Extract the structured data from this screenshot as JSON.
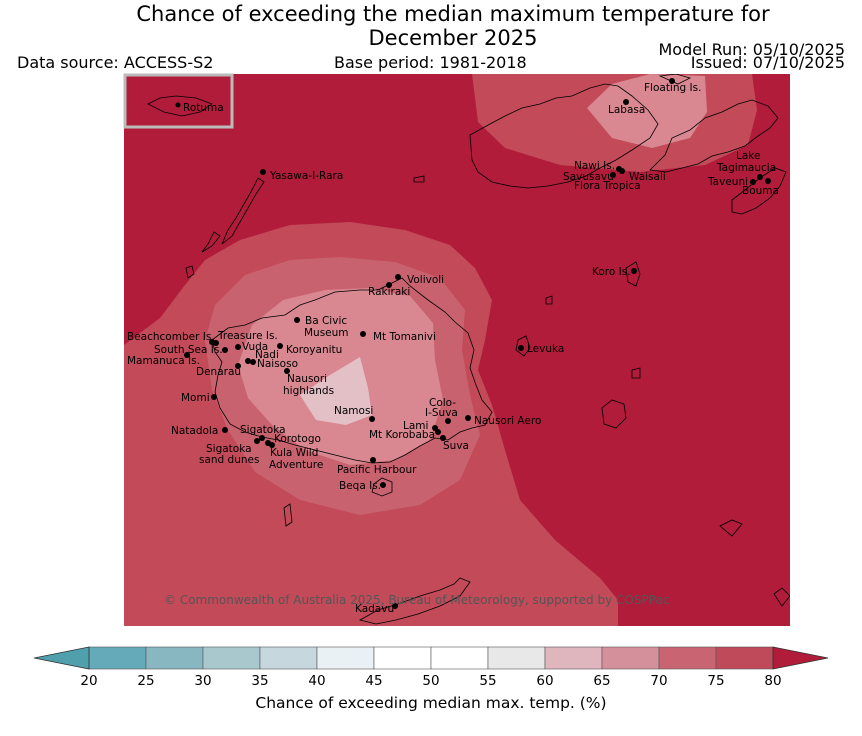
{
  "header": {
    "title_line1": "Chance of exceeding the median maximum temperature for",
    "title_line2": "December 2025",
    "data_source": "Data source: ACCESS-S2",
    "base_period": "Base period: 1981-2018",
    "model_run": "Model Run: 05/10/2025",
    "issued": "Issued: 07/10/2025"
  },
  "inset": {
    "label": "Rotuma"
  },
  "places": [
    "Floating Is.",
    "Labasa",
    "Yasawa-I-Rara",
    "Nawi Is.",
    "Savusavu",
    "Waisali",
    "Flora Tropica",
    "Lake",
    "Tagimaucia",
    "Taveuni",
    "Bouma",
    "Koro Is.",
    "Volivoli",
    "Rakiraki",
    "Ba Civic",
    "Museum",
    "Mt Tomanivi",
    "Beachcomber Is.",
    "Treasure Is.",
    "South Sea Is.",
    "Vuda",
    "Koroyanitu",
    "Nadi",
    "Mamanuca Is.",
    "Naisoso",
    "Denarau",
    "Nausori",
    "highlands",
    "Levuka",
    "Momi",
    "Colo-",
    "I-Suva",
    "Namosi",
    "Lami",
    "Nausori Aero",
    "Natadola",
    "Sigatoka",
    "Mt Korobaba",
    "Korotogo",
    "Suva",
    "Sigatoka",
    "sand dunes",
    "Kula Wild",
    "Adventure",
    "Pacific Harbour",
    "Beqa Is.",
    "Kadavu"
  ],
  "copyright": "© Commonwealth of Australia 2025, Bureau of Meteorology, supported by COSPPac",
  "colorbar": {
    "title": "Chance of exceeding median max. temp. (%)",
    "ticks": [
      "20",
      "25",
      "30",
      "35",
      "40",
      "45",
      "50",
      "55",
      "60",
      "65",
      "70",
      "75",
      "80"
    ],
    "colors": [
      "#64aab8",
      "#88b6c1",
      "#a8c8ce",
      "#c6d8de",
      "#eaf1f4",
      "#ffffff",
      "#ffffff",
      "#e8e8e8",
      "#dfb6bd",
      "#d4919b",
      "#c96572",
      "#bf4a5a"
    ],
    "under_color": "#4f9fad",
    "over_color": "#b01c3a"
  },
  "map_colors": {
    "background": "#b01c3a",
    "band_70_75": "#c24a59",
    "band_65_70": "#c9626f",
    "band_60_65": "#d98891",
    "band_55_60": "#e2c0c6"
  }
}
